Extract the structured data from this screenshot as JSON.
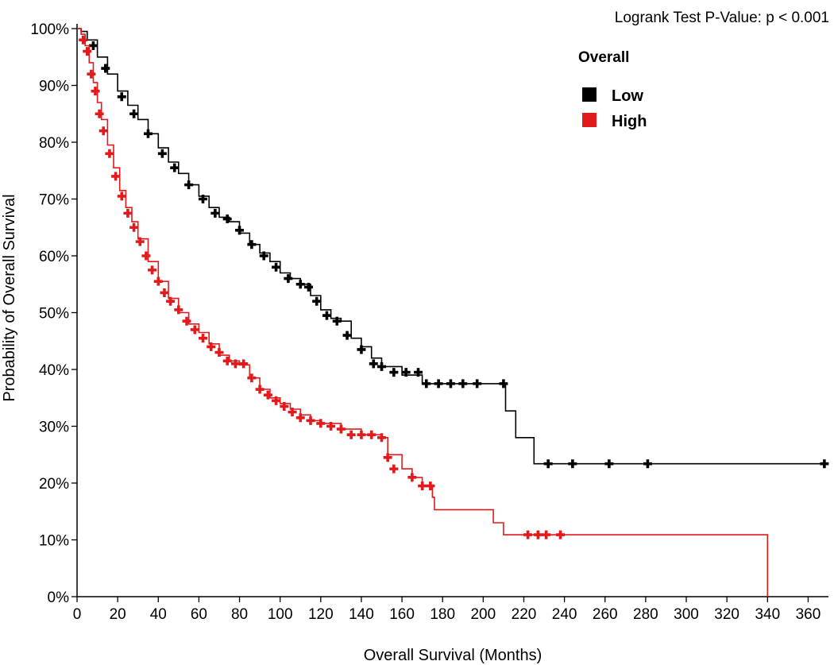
{
  "chart_data": {
    "type": "line",
    "subtype": "kaplan-meier",
    "annotation": "Logrank Test P-Value: p < 0.001",
    "xlabel": "Overall Survival (Months)",
    "ylabel": "Probability of Overall Survival",
    "xlim": [
      0,
      370
    ],
    "ylim": [
      0,
      100
    ],
    "x_ticks": [
      0,
      20,
      40,
      60,
      80,
      100,
      120,
      140,
      160,
      180,
      200,
      220,
      240,
      260,
      280,
      300,
      320,
      340,
      360
    ],
    "y_ticks": [
      0,
      10,
      20,
      30,
      40,
      50,
      60,
      70,
      80,
      90,
      100
    ],
    "y_tick_labels": [
      "0%",
      "10%",
      "20%",
      "30%",
      "40%",
      "50%",
      "60%",
      "70%",
      "80%",
      "90%",
      "100%"
    ],
    "legend": {
      "title": "Overall",
      "position": "top-right"
    },
    "series": [
      {
        "name": "Low",
        "color": "#000000",
        "points": [
          [
            0,
            100
          ],
          [
            2,
            99.5
          ],
          [
            5,
            98
          ],
          [
            10,
            95
          ],
          [
            15,
            92
          ],
          [
            20,
            89
          ],
          [
            25,
            86.5
          ],
          [
            30,
            84
          ],
          [
            35,
            81.5
          ],
          [
            40,
            79
          ],
          [
            45,
            76.5
          ],
          [
            50,
            74.5
          ],
          [
            55,
            72.5
          ],
          [
            60,
            70.5
          ],
          [
            65,
            68.5
          ],
          [
            70,
            66.8
          ],
          [
            75,
            66
          ],
          [
            80,
            64
          ],
          [
            85,
            62
          ],
          [
            90,
            60.5
          ],
          [
            95,
            59
          ],
          [
            100,
            57
          ],
          [
            105,
            56
          ],
          [
            110,
            55
          ],
          [
            115,
            53
          ],
          [
            120,
            50.5
          ],
          [
            125,
            49
          ],
          [
            130,
            48.5
          ],
          [
            135,
            45.5
          ],
          [
            140,
            44
          ],
          [
            145,
            42
          ],
          [
            150,
            40.5
          ],
          [
            160,
            39
          ],
          [
            170,
            37.5
          ],
          [
            180,
            37.5
          ],
          [
            200,
            37.5
          ],
          [
            210,
            37.5
          ],
          [
            211,
            32.7
          ],
          [
            216,
            28
          ],
          [
            225,
            23.4
          ],
          [
            368,
            23.4
          ]
        ],
        "censored": [
          [
            8,
            97
          ],
          [
            14,
            93
          ],
          [
            22,
            88
          ],
          [
            28,
            85
          ],
          [
            35,
            81.5
          ],
          [
            42,
            78
          ],
          [
            48,
            75.5
          ],
          [
            55,
            72.5
          ],
          [
            62,
            70
          ],
          [
            68,
            67.5
          ],
          [
            74,
            66.5
          ],
          [
            80,
            64.5
          ],
          [
            86,
            62
          ],
          [
            92,
            60
          ],
          [
            98,
            58
          ],
          [
            104,
            56
          ],
          [
            110,
            55
          ],
          [
            114,
            54.5
          ],
          [
            118,
            52
          ],
          [
            123,
            49.5
          ],
          [
            128,
            48.5
          ],
          [
            133,
            46
          ],
          [
            140,
            43.5
          ],
          [
            146,
            41
          ],
          [
            150,
            40.5
          ],
          [
            156,
            39.5
          ],
          [
            162,
            39.5
          ],
          [
            168,
            39.5
          ],
          [
            172,
            37.5
          ],
          [
            178,
            37.5
          ],
          [
            184,
            37.5
          ],
          [
            190,
            37.5
          ],
          [
            197,
            37.5
          ],
          [
            210,
            37.5
          ],
          [
            232,
            23.4
          ],
          [
            244,
            23.4
          ],
          [
            262,
            23.4
          ],
          [
            281,
            23.4
          ],
          [
            368,
            23.4
          ]
        ]
      },
      {
        "name": "High",
        "color": "#e31a1c",
        "points": [
          [
            0,
            100
          ],
          [
            2,
            99
          ],
          [
            4,
            97
          ],
          [
            6,
            94
          ],
          [
            8,
            90.5
          ],
          [
            10,
            87
          ],
          [
            12,
            84
          ],
          [
            15,
            79.5
          ],
          [
            18,
            75.5
          ],
          [
            21,
            71.5
          ],
          [
            24,
            68.5
          ],
          [
            27,
            66
          ],
          [
            30,
            63
          ],
          [
            35,
            59
          ],
          [
            40,
            55.5
          ],
          [
            45,
            52.5
          ],
          [
            50,
            50
          ],
          [
            55,
            48
          ],
          [
            60,
            46.5
          ],
          [
            65,
            44.5
          ],
          [
            70,
            42.5
          ],
          [
            75,
            41.5
          ],
          [
            80,
            40.8
          ],
          [
            85,
            38.5
          ],
          [
            90,
            36.5
          ],
          [
            95,
            35
          ],
          [
            100,
            34
          ],
          [
            105,
            33
          ],
          [
            110,
            32
          ],
          [
            115,
            31
          ],
          [
            120,
            30.5
          ],
          [
            130,
            29.5
          ],
          [
            140,
            28.5
          ],
          [
            150,
            28
          ],
          [
            153,
            25
          ],
          [
            160,
            22.5
          ],
          [
            165,
            21
          ],
          [
            170,
            19.5
          ],
          [
            175,
            17.5
          ],
          [
            176,
            15.3
          ],
          [
            180,
            15.3
          ],
          [
            204,
            15.3
          ],
          [
            205,
            13
          ],
          [
            210,
            10.9
          ],
          [
            238,
            10.9
          ],
          [
            340,
            10.9
          ],
          [
            340,
            0
          ]
        ],
        "censored": [
          [
            3,
            98
          ],
          [
            5,
            96
          ],
          [
            7,
            92
          ],
          [
            9,
            89
          ],
          [
            11,
            85
          ],
          [
            13,
            82
          ],
          [
            16,
            78
          ],
          [
            19,
            74
          ],
          [
            22,
            70.5
          ],
          [
            25,
            67.5
          ],
          [
            28,
            65
          ],
          [
            31,
            62.5
          ],
          [
            34,
            60
          ],
          [
            37,
            57.5
          ],
          [
            40,
            55.5
          ],
          [
            43,
            53.5
          ],
          [
            46,
            52
          ],
          [
            50,
            50.5
          ],
          [
            54,
            48.5
          ],
          [
            58,
            47
          ],
          [
            62,
            45.5
          ],
          [
            66,
            44
          ],
          [
            70,
            43
          ],
          [
            74,
            41.5
          ],
          [
            78,
            41
          ],
          [
            82,
            41
          ],
          [
            86,
            38.5
          ],
          [
            90,
            36.5
          ],
          [
            94,
            35.5
          ],
          [
            98,
            34.5
          ],
          [
            102,
            33.5
          ],
          [
            106,
            32.5
          ],
          [
            110,
            31.5
          ],
          [
            115,
            31
          ],
          [
            120,
            30.5
          ],
          [
            125,
            30
          ],
          [
            130,
            29.5
          ],
          [
            135,
            28.5
          ],
          [
            140,
            28.5
          ],
          [
            145,
            28.5
          ],
          [
            150,
            28
          ],
          [
            153,
            24.5
          ],
          [
            156,
            22.5
          ],
          [
            165,
            21
          ],
          [
            170,
            19.5
          ],
          [
            174,
            19.5
          ],
          [
            222,
            10.9
          ],
          [
            227,
            10.9
          ],
          [
            231,
            10.9
          ],
          [
            238,
            10.9
          ]
        ]
      }
    ]
  }
}
